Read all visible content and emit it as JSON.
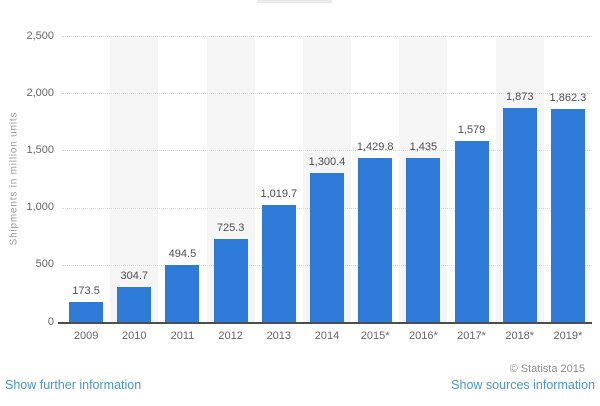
{
  "chart_data": {
    "type": "bar",
    "title": "",
    "xlabel": "",
    "ylabel": "Shipments in million units",
    "categories": [
      "2009",
      "2010",
      "2011",
      "2012",
      "2013",
      "2014",
      "2015*",
      "2016*",
      "2017*",
      "2018*",
      "2019*"
    ],
    "values": [
      173.5,
      304.7,
      494.5,
      725.3,
      1019.7,
      1300.4,
      1429.8,
      1435,
      1579,
      1873,
      1862.3
    ],
    "value_labels": [
      "173.5",
      "304.7",
      "494.5",
      "725.3",
      "1,019.7",
      "1,300.4",
      "1,429.8",
      "1,435",
      "1,579",
      "1,873",
      "1,862.3"
    ],
    "ylim": [
      0,
      2500
    ],
    "yticks": [
      0,
      500,
      1000,
      1500,
      2000,
      2500
    ],
    "ytick_labels": [
      "0",
      "500",
      "1,000",
      "1,500",
      "2,000",
      "2,500"
    ],
    "grid": "horizontal-dotted",
    "legend": "none",
    "bar_color": "#2d7ad9",
    "stripe_bands": [
      1,
      3,
      5,
      7,
      9
    ],
    "stripe_color": "#f5f5f5"
  },
  "colors": {
    "link": "#4596d7",
    "axis": "#4d4d4d",
    "tick_text": "#666666",
    "value_text": "#4d4d4d",
    "ylabel_text": "#999999",
    "attribution_text": "#8c8c8c",
    "gridline": "#d8d8d8"
  },
  "footer": {
    "further_link": "Show further information",
    "sources_link": "Show sources information",
    "attribution": "© Statista 2015"
  }
}
